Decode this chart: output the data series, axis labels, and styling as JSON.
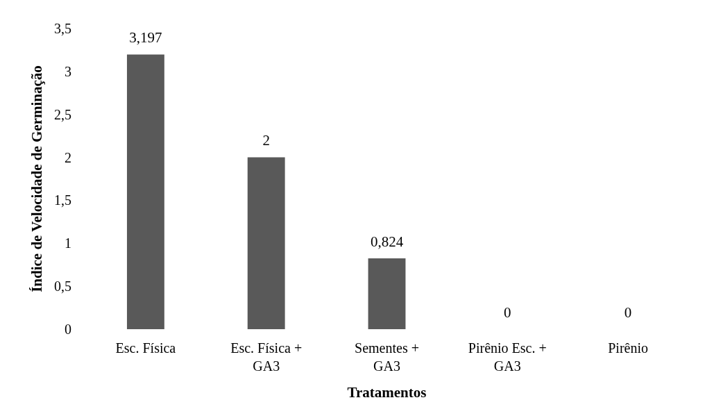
{
  "chart_data": {
    "type": "bar",
    "xlabel": "Tratamentos",
    "ylabel": "Índice de Velocidade de Germinação",
    "categories": [
      "Esc. Física",
      "Esc. Física +\nGA3",
      "Sementes +\nGA3",
      "Pirênio Esc. +\nGA3",
      "Pirênio"
    ],
    "values": [
      3.197,
      2,
      0.824,
      0,
      0
    ],
    "value_labels": [
      "3,197",
      "2",
      "0,824",
      "0",
      "0"
    ],
    "color": "#595959",
    "ylim": [
      0,
      3.5
    ],
    "yticks": [
      0,
      {
        "value": 0.5,
        "label": "0,5"
      },
      1,
      {
        "value": 1.5,
        "label": "1,5"
      },
      2,
      {
        "value": 2.5,
        "label": "2,5"
      },
      3,
      {
        "value": 3.5,
        "label": "3,5"
      }
    ],
    "grid": false
  }
}
